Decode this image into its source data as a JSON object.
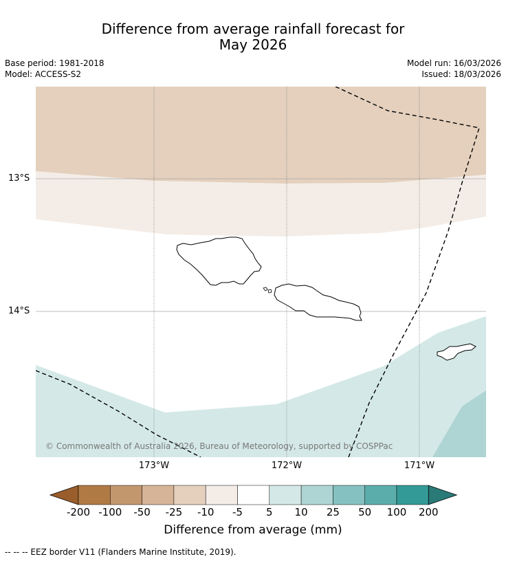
{
  "title_line1": "Difference from average rainfall forecast for",
  "title_line2": "May 2026",
  "meta_left": {
    "base_period": "Base period: 1981-2018",
    "model": "Model: ACCESS-S2"
  },
  "meta_right": {
    "model_run": "Model run: 16/03/2026",
    "issued": "Issued: 18/03/2026"
  },
  "map": {
    "copyright": "© Commonwealth of Australia 2026, Bureau of Meteorology, supported by COSPPac",
    "lat_labels": [
      "13°S",
      "14°S"
    ],
    "lon_labels": [
      "173°W",
      "172°W",
      "171°W"
    ]
  },
  "colorbar": {
    "label": "Difference from average (mm)",
    "ticks": [
      "-200",
      "-100",
      "-50",
      "-25",
      "-10",
      "-5",
      "5",
      "10",
      "25",
      "50",
      "100",
      "200"
    ],
    "colors": [
      "#9a5e2c",
      "#b07a45",
      "#c3976e",
      "#d6b497",
      "#e4d0bd",
      "#f4ede7",
      "#ffffff",
      "#d4e9e7",
      "#aed4d3",
      "#85c1c0",
      "#5aadab",
      "#349a97",
      "#2a7a77"
    ]
  },
  "footnote": "-- -- -- EEZ border V11 (Flanders Marine Institute, 2019)."
}
